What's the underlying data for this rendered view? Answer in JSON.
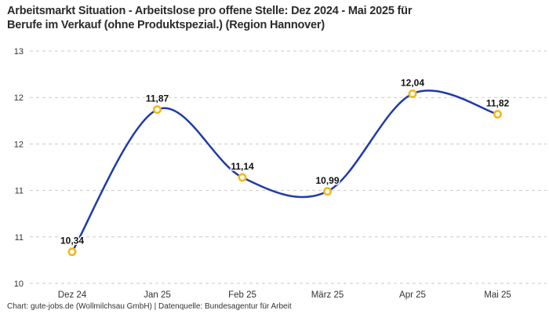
{
  "header": {
    "title_line1": "Arbeitsmarkt Situation - Arbeitslose pro offene Stelle: Dez 2024 - Mai 2025 für",
    "title_line2": "Berufe im Verkauf (ohne Produktspezial.) (Region Hannover)"
  },
  "footer": {
    "attribution": "Chart: gute-jobs.de (Wollmilchsau GmbH) | Datenquelle: Bundesagentur für Arbeit"
  },
  "chart_data": {
    "type": "line",
    "title": "Arbeitsmarkt Situation - Arbeitslose pro offene Stelle: Dez 2024 - Mai 2025 für Berufe im Verkauf (ohne Produktspezial.) (Region Hannover)",
    "categories": [
      "Dez 24",
      "Jan 25",
      "Feb 25",
      "März 25",
      "Apr 25",
      "Mai 25"
    ],
    "series": [
      {
        "name": "Arbeitslose pro offene Stelle",
        "values": [
          10.34,
          11.87,
          11.14,
          10.99,
          12.04,
          11.82
        ],
        "value_labels": [
          "10,34",
          "11,87",
          "11,14",
          "10,99",
          "12,04",
          "11,82"
        ]
      }
    ],
    "ylim": [
      10,
      12.5
    ],
    "y_ticks": {
      "values": [
        10,
        10.5,
        11,
        11.5,
        12,
        12.5
      ],
      "labels": [
        "10",
        "11",
        "11",
        "12",
        "12",
        "13"
      ]
    },
    "grid": "horizontal-dashed",
    "legend": "none",
    "smooth": true,
    "colors": {
      "line": "#1F3BA8",
      "marker_ring": "#F3B71C",
      "marker_fill": "#FFFFFF",
      "gridline": "#C9C9C9",
      "title_text": "#2B2B2B",
      "axis_text": "#333333",
      "label_text": "#111111"
    }
  }
}
